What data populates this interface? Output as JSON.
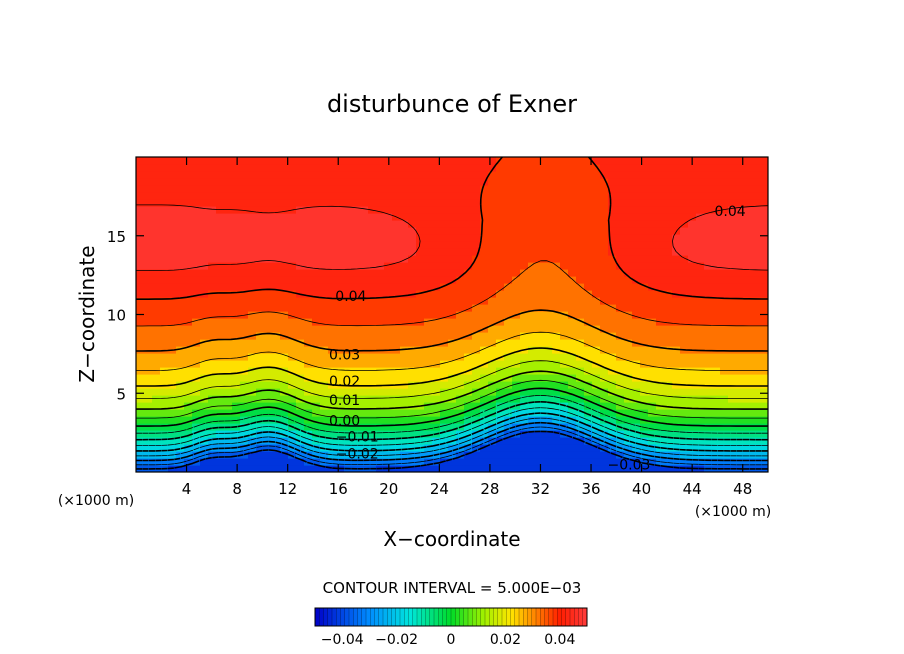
{
  "chart_data": {
    "type": "heatmap",
    "title": "disturbunce of Exner",
    "xlabel": "X−coordinate",
    "ylabel": "Z−coordinate",
    "x_unit_left": "(×1000 m)",
    "x_unit_right": "(×1000 m)",
    "xlim": [
      0,
      50
    ],
    "ylim": [
      0,
      20
    ],
    "x_ticks": [
      4,
      8,
      12,
      16,
      20,
      24,
      28,
      32,
      36,
      40,
      44,
      48
    ],
    "y_ticks": [
      5,
      10,
      15
    ],
    "contour_interval_text": "CONTOUR INTERVAL = 5.000E−03",
    "contour_interval": 0.005,
    "value_range": [
      -0.05,
      0.05
    ],
    "contour_labels": [
      {
        "text": "0.04",
        "x": 17,
        "y": 11.1
      },
      {
        "text": "0.04",
        "x": 47,
        "y": 16.5
      },
      {
        "text": "0.03",
        "x": 16.5,
        "y": 7.4
      },
      {
        "text": "0.02",
        "x": 16.5,
        "y": 5.7
      },
      {
        "text": "0.01",
        "x": 16.5,
        "y": 4.5
      },
      {
        "text": "0.00",
        "x": 16.5,
        "y": 3.2
      },
      {
        "text": "−0.01",
        "x": 17.5,
        "y": 2.2
      },
      {
        "text": "−0.02",
        "x": 17.5,
        "y": 1.1
      },
      {
        "text": "−0.03",
        "x": 39,
        "y": 0.4
      }
    ],
    "colorbar": {
      "ticks": [
        -0.04,
        -0.02,
        0,
        0.02,
        0.04
      ],
      "tick_labels": [
        "−0.04",
        "−0.02",
        "0",
        "0.02",
        "0.04"
      ],
      "colormap": "rainbow (blue → cyan → green → yellow → red)"
    }
  }
}
